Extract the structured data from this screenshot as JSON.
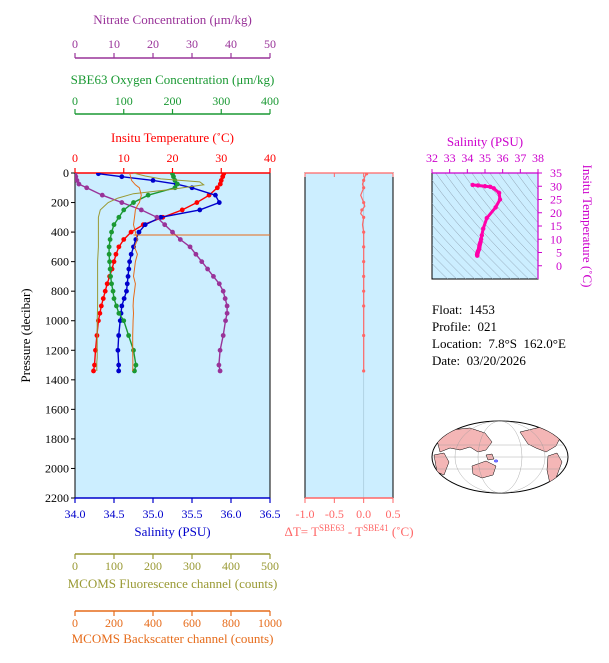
{
  "info": {
    "float": "Float:  1453",
    "profile": "Profile:  021",
    "location": "Location:  7.8°S  162.0°E",
    "date": "Date:  03/20/2026"
  },
  "colors": {
    "nitrate": "#993399",
    "oxygen": "#1a9933",
    "temperature": "#ff0000",
    "salinity": "#0000cc",
    "fluorescence": "#999933",
    "backscatter": "#e66b1a",
    "delta_t": "#ff6666",
    "ts_curve": "#ff00aa",
    "plot_bg": "#cceeff"
  },
  "chart_data": [
    {
      "type": "line",
      "name": "main-profile",
      "y_axis": {
        "label": "Pressure (decibar)",
        "lim": [
          2200,
          0
        ],
        "ticks": [
          0,
          200,
          400,
          600,
          800,
          1000,
          1200,
          1400,
          1600,
          1800,
          2000,
          2200
        ]
      },
      "axes": [
        {
          "key": "nitrate",
          "label": "Nitrate Concentration (μm/kg)",
          "lim": [
            0,
            50
          ],
          "ticks": [
            0,
            10,
            20,
            30,
            40,
            50
          ]
        },
        {
          "key": "oxygen",
          "label": "SBE63 Oxygen Concentration (μm/kg)",
          "lim": [
            0,
            400
          ],
          "ticks": [
            0,
            100,
            200,
            300,
            400
          ]
        },
        {
          "key": "temperature",
          "label": "Insitu Temperature (˚C)",
          "lim": [
            0,
            40
          ],
          "ticks": [
            0,
            10,
            20,
            30,
            40
          ]
        },
        {
          "key": "salinity",
          "label": "Salinity (PSU)",
          "lim": [
            34.0,
            36.5
          ],
          "ticks": [
            34.0,
            34.5,
            35.0,
            35.5,
            36.0,
            36.5
          ]
        },
        {
          "key": "fluorescence",
          "label": "MCOMS Fluorescence channel (counts)",
          "lim": [
            0,
            500
          ],
          "ticks": [
            0,
            100,
            200,
            300,
            400,
            500
          ]
        },
        {
          "key": "backscatter",
          "label": "MCOMS Backscatter channel (counts)",
          "lim": [
            0,
            1000
          ],
          "ticks": [
            0,
            200,
            400,
            600,
            800,
            1000
          ]
        }
      ],
      "series": [
        {
          "axis": "temperature",
          "x": [
            30.5,
            30.3,
            30.0,
            29.8,
            29.2,
            27.5,
            25.0,
            22.0,
            18.0,
            14.0,
            11.5,
            10.0,
            9.0,
            8.4,
            8.0,
            7.6,
            7.1,
            6.6,
            6.2,
            5.8,
            5.4,
            5.1,
            4.8,
            4.5,
            4.2,
            4.0,
            3.8
          ],
          "y": [
            5,
            25,
            50,
            75,
            100,
            150,
            200,
            250,
            300,
            350,
            400,
            450,
            500,
            550,
            600,
            650,
            700,
            750,
            800,
            850,
            900,
            950,
            1000,
            1100,
            1200,
            1300,
            1340
          ]
        },
        {
          "axis": "salinity",
          "x": [
            34.3,
            34.6,
            35.0,
            35.3,
            35.5,
            35.8,
            35.85,
            35.6,
            35.1,
            34.9,
            34.82,
            34.78,
            34.75,
            34.72,
            34.7,
            34.69,
            34.68,
            34.67,
            34.66,
            34.63,
            34.6,
            34.59,
            34.58,
            34.56,
            34.55,
            34.56,
            34.56
          ],
          "y": [
            5,
            25,
            50,
            75,
            100,
            150,
            200,
            250,
            300,
            350,
            400,
            450,
            500,
            550,
            600,
            650,
            700,
            750,
            800,
            850,
            900,
            950,
            1000,
            1100,
            1200,
            1300,
            1340
          ]
        },
        {
          "axis": "nitrate",
          "x": [
            0.0,
            0.2,
            0.5,
            1.0,
            3.0,
            7.0,
            12.0,
            17.0,
            21.0,
            23.0,
            25.0,
            27.0,
            29.5,
            31.0,
            32.5,
            34.0,
            35.5,
            37.0,
            38.0,
            38.5,
            39.0,
            39.0,
            38.6,
            38.0,
            37.2,
            36.9,
            37.2
          ],
          "y": [
            5,
            25,
            50,
            75,
            100,
            150,
            200,
            250,
            300,
            350,
            400,
            450,
            500,
            550,
            600,
            650,
            700,
            750,
            800,
            850,
            900,
            950,
            1000,
            1100,
            1200,
            1300,
            1340
          ]
        },
        {
          "axis": "oxygen",
          "x": [
            200,
            202,
            205,
            210,
            205,
            150,
            120,
            100,
            90,
            80,
            75,
            72,
            70,
            70,
            71,
            72,
            73,
            75,
            78,
            80,
            85,
            90,
            100,
            110,
            120,
            125,
            122
          ],
          "y": [
            5,
            25,
            50,
            75,
            100,
            150,
            200,
            250,
            300,
            350,
            400,
            450,
            500,
            550,
            600,
            650,
            700,
            750,
            800,
            850,
            900,
            950,
            1000,
            1100,
            1200,
            1300,
            1340
          ]
        },
        {
          "axis": "fluorescence",
          "x": [
            150,
            180,
            220,
            320,
            330,
            250,
            150,
            110,
            85,
            65,
            60,
            60,
            60,
            58,
            58,
            58,
            58,
            57,
            57,
            57,
            57,
            57,
            57,
            56,
            56,
            56,
            56
          ],
          "y": [
            0,
            20,
            40,
            60,
            80,
            110,
            140,
            170,
            200,
            250,
            300,
            400,
            500,
            600,
            700,
            800,
            900,
            1000,
            1050,
            1100,
            1150,
            1200,
            1250,
            1280,
            1300,
            1320,
            1340
          ]
        },
        {
          "axis": "backscatter",
          "x": [
            280,
            290,
            310,
            330,
            340,
            330,
            320,
            310,
            305,
            300,
            310,
            320,
            305,
            320,
            310,
            305,
            300,
            310,
            305,
            300,
            298,
            300,
            298,
            296,
            296,
            297,
            296
          ],
          "y": [
            0,
            50,
            80,
            100,
            150,
            200,
            220,
            250,
            300,
            350,
            400,
            450,
            500,
            550,
            600,
            650,
            700,
            750,
            800,
            850,
            900,
            950,
            1000,
            1100,
            1200,
            1300,
            1340
          ]
        }
      ],
      "annotations": {
        "backscatter_spike_pressure": 420,
        "backscatter_spike_max": 1000
      }
    },
    {
      "type": "line",
      "name": "delta-t",
      "xlabel": "ΔT= T",
      "xlabel_sup1": "SBE63",
      "xlabel_mid": " - T",
      "xlabel_sup2": "SBE41",
      "xlabel_unit": " (˚C)",
      "xlim": [
        -1.0,
        0.5
      ],
      "ticks": [
        -1.0,
        -0.5,
        0.0,
        0.5
      ],
      "tick_labels": [
        "-1.0",
        "-0.5",
        "0.0",
        "0.5"
      ],
      "ylim": [
        2200,
        0
      ],
      "x": [
        0.05,
        0.02,
        0.0,
        -0.02,
        0.0,
        -0.05,
        0.0,
        0.02,
        -0.03,
        -0.05,
        0.0,
        -0.02,
        0.0,
        0.0,
        0.0,
        0.0,
        0.0,
        0.0,
        0.0,
        0.0,
        0.0,
        0.0,
        0.0,
        0.0,
        0.0,
        0.0,
        0.0
      ],
      "y": [
        5,
        25,
        50,
        75,
        100,
        150,
        200,
        225,
        250,
        275,
        300,
        350,
        400,
        450,
        500,
        550,
        600,
        650,
        700,
        750,
        800,
        850,
        900,
        1000,
        1100,
        1200,
        1340
      ]
    },
    {
      "type": "line",
      "name": "ts-diagram",
      "xlabel": "Salinity (PSU)",
      "ylabel": "Insitu Temperature (˚C)",
      "xlim": [
        32,
        38
      ],
      "ylim": [
        -5,
        35
      ],
      "xticks": [
        32,
        33,
        34,
        35,
        36,
        37,
        38
      ],
      "yticks": [
        0,
        5,
        10,
        15,
        20,
        25,
        30,
        35
      ],
      "x": [
        34.3,
        34.6,
        35.0,
        35.3,
        35.5,
        35.8,
        35.85,
        35.6,
        35.1,
        34.9,
        34.82,
        34.78,
        34.75,
        34.72,
        34.7,
        34.69,
        34.68,
        34.67,
        34.66,
        34.63,
        34.6,
        34.59,
        34.58,
        34.56,
        34.55,
        34.56,
        34.56
      ],
      "y": [
        30.5,
        30.3,
        30.0,
        29.8,
        29.2,
        27.5,
        25.0,
        22.0,
        18.0,
        14.0,
        11.5,
        10.0,
        9.0,
        8.4,
        8.0,
        7.6,
        7.1,
        6.6,
        6.2,
        5.8,
        5.4,
        5.1,
        4.8,
        4.5,
        4.2,
        4.0,
        3.8
      ],
      "grid": "density contours"
    }
  ]
}
